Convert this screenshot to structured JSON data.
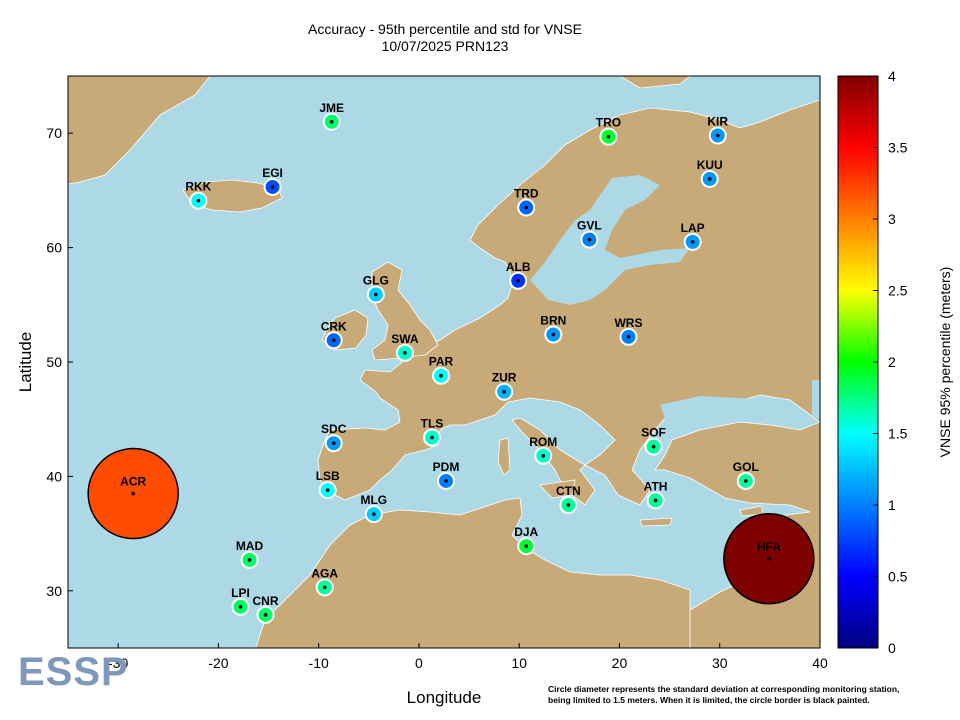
{
  "title": "Accuracy - 95th percentile and std for VNSE",
  "subtitle": "10/07/2025 PRN123",
  "logo_text": "ESSP",
  "footnote_line1": "Circle diameter represents the standard deviation at corresponding monitoring station,",
  "footnote_line2": "being limited to 1.5 meters. When it is limited, the circle border is black painted.",
  "colors": {
    "sea": "#add8e6",
    "land": "#c8aa78",
    "border": "#ffffff",
    "frame": "#000000"
  },
  "chart_data": {
    "type": "scatter",
    "xlabel": "Longitude",
    "ylabel": "Latitude",
    "xlim": [
      -35,
      40
    ],
    "ylim": [
      25,
      75
    ],
    "xticks": [
      -30,
      -20,
      -10,
      0,
      10,
      20,
      30,
      40
    ],
    "yticks": [
      30,
      40,
      50,
      60,
      70
    ],
    "colorbar": {
      "label": "VNSE 95% percentile (meters)",
      "range": [
        0,
        4
      ],
      "ticks": [
        "0",
        "0.5",
        "1",
        "1.5",
        "2",
        "2.5",
        "3",
        "3.5",
        "4"
      ]
    },
    "stations": [
      {
        "name": "JME",
        "lon": -8.7,
        "lat": 71.0,
        "vnse95": 1.8,
        "std": 0.15,
        "limited": false
      },
      {
        "name": "TRO",
        "lon": 18.9,
        "lat": 69.7,
        "vnse95": 1.9,
        "std": 0.2,
        "limited": false
      },
      {
        "name": "KIR",
        "lon": 29.8,
        "lat": 69.8,
        "vnse95": 1.1,
        "std": 0.1,
        "limited": false
      },
      {
        "name": "EGI",
        "lon": -14.6,
        "lat": 65.3,
        "vnse95": 0.8,
        "std": 0.09,
        "limited": false
      },
      {
        "name": "RKK",
        "lon": -22.0,
        "lat": 64.1,
        "vnse95": 1.5,
        "std": 0.17,
        "limited": false
      },
      {
        "name": "KUU",
        "lon": 29.0,
        "lat": 66.0,
        "vnse95": 1.1,
        "std": 0.1,
        "limited": false
      },
      {
        "name": "TRD",
        "lon": 10.7,
        "lat": 63.5,
        "vnse95": 0.9,
        "std": 0.09,
        "limited": false
      },
      {
        "name": "GVL",
        "lon": 17.0,
        "lat": 60.7,
        "vnse95": 1.0,
        "std": 0.09,
        "limited": false
      },
      {
        "name": "LAP",
        "lon": 27.3,
        "lat": 60.5,
        "vnse95": 1.1,
        "std": 0.1,
        "limited": false
      },
      {
        "name": "ALB",
        "lon": 9.9,
        "lat": 57.1,
        "vnse95": 0.7,
        "std": 0.09,
        "limited": false
      },
      {
        "name": "GLG",
        "lon": -4.3,
        "lat": 55.9,
        "vnse95": 1.3,
        "std": 0.12,
        "limited": false
      },
      {
        "name": "BRN",
        "lon": 13.4,
        "lat": 52.4,
        "vnse95": 1.1,
        "std": 0.1,
        "limited": false
      },
      {
        "name": "WRS",
        "lon": 20.9,
        "lat": 52.2,
        "vnse95": 1.0,
        "std": 0.09,
        "limited": false
      },
      {
        "name": "CRK",
        "lon": -8.5,
        "lat": 51.9,
        "vnse95": 0.9,
        "std": 0.09,
        "limited": false
      },
      {
        "name": "SWA",
        "lon": -1.4,
        "lat": 50.8,
        "vnse95": 1.6,
        "std": 0.13,
        "limited": false
      },
      {
        "name": "PAR",
        "lon": 2.2,
        "lat": 48.8,
        "vnse95": 1.5,
        "std": 0.13,
        "limited": false
      },
      {
        "name": "ZUR",
        "lon": 8.5,
        "lat": 47.4,
        "vnse95": 1.2,
        "std": 0.12,
        "limited": false
      },
      {
        "name": "TLS",
        "lon": 1.3,
        "lat": 43.4,
        "vnse95": 1.6,
        "std": 0.14,
        "limited": false
      },
      {
        "name": "SDC",
        "lon": -8.5,
        "lat": 42.9,
        "vnse95": 1.1,
        "std": 0.1,
        "limited": false
      },
      {
        "name": "SOF",
        "lon": 23.4,
        "lat": 42.6,
        "vnse95": 1.7,
        "std": 0.17,
        "limited": false
      },
      {
        "name": "ROM",
        "lon": 12.4,
        "lat": 41.8,
        "vnse95": 1.6,
        "std": 0.14,
        "limited": false
      },
      {
        "name": "PDM",
        "lon": 2.7,
        "lat": 39.6,
        "vnse95": 1.0,
        "std": 0.09,
        "limited": false
      },
      {
        "name": "GOL",
        "lon": 32.6,
        "lat": 39.6,
        "vnse95": 1.7,
        "std": 0.17,
        "limited": false
      },
      {
        "name": "LSB",
        "lon": -9.1,
        "lat": 38.8,
        "vnse95": 1.5,
        "std": 0.14,
        "limited": false
      },
      {
        "name": "ACR",
        "lon": -28.5,
        "lat": 38.5,
        "vnse95": 3.2,
        "std": 1.5,
        "limited": true
      },
      {
        "name": "ATH",
        "lon": 23.6,
        "lat": 37.9,
        "vnse95": 1.7,
        "std": 0.14,
        "limited": false
      },
      {
        "name": "CTN",
        "lon": 14.9,
        "lat": 37.5,
        "vnse95": 1.7,
        "std": 0.14,
        "limited": false
      },
      {
        "name": "MLG",
        "lon": -4.5,
        "lat": 36.7,
        "vnse95": 1.3,
        "std": 0.12,
        "limited": false
      },
      {
        "name": "DJA",
        "lon": 10.7,
        "lat": 33.9,
        "vnse95": 1.9,
        "std": 0.2,
        "limited": false
      },
      {
        "name": "HFA",
        "lon": 34.9,
        "lat": 32.8,
        "vnse95": 4.0,
        "std": 1.5,
        "limited": true
      },
      {
        "name": "MAD",
        "lon": -16.9,
        "lat": 32.7,
        "vnse95": 1.8,
        "std": 0.15,
        "limited": false
      },
      {
        "name": "AGA",
        "lon": -9.4,
        "lat": 30.3,
        "vnse95": 1.7,
        "std": 0.16,
        "limited": false
      },
      {
        "name": "LPI",
        "lon": -17.8,
        "lat": 28.6,
        "vnse95": 1.8,
        "std": 0.16,
        "limited": false
      },
      {
        "name": "CNR",
        "lon": -15.3,
        "lat": 27.9,
        "vnse95": 1.8,
        "std": 0.19,
        "limited": false
      }
    ]
  }
}
